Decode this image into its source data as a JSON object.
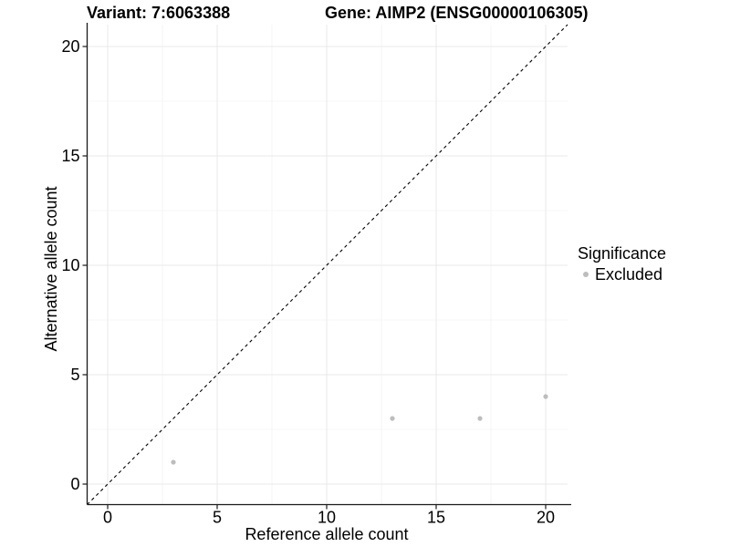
{
  "titles": {
    "variant": "Variant: 7:6063388",
    "gene": "Gene: AIMP2 (ENSG00000106305)"
  },
  "legend": {
    "title": "Significance",
    "items": [
      {
        "label": "Excluded",
        "color": "#bdbdbd"
      }
    ]
  },
  "chart_data": {
    "type": "scatter",
    "title": "Variant: 7:6063388   Gene: AIMP2 (ENSG00000106305)",
    "xlabel": "Reference allele count",
    "ylabel": "Alternative allele count",
    "xlim": [
      -1,
      21
    ],
    "ylim": [
      -1,
      21
    ],
    "x_ticks": [
      0,
      5,
      10,
      15,
      20
    ],
    "y_ticks": [
      0,
      5,
      10,
      15,
      20
    ],
    "minor_gridlines": [
      2.5,
      7.5,
      12.5,
      17.5
    ],
    "grid": true,
    "legend_position": "right",
    "series": [
      {
        "name": "Excluded",
        "color": "#bdbdbd",
        "points": [
          [
            3,
            1
          ],
          [
            13,
            3
          ],
          [
            17,
            3
          ],
          [
            20,
            4
          ]
        ]
      }
    ],
    "reference_line": {
      "type": "identity",
      "slope": 1,
      "intercept": 0,
      "style": "dashed",
      "color": "#000000"
    }
  },
  "colors": {
    "background": "#ffffff",
    "grid_major": "#e9e9e9",
    "grid_minor": "#f4f4f4",
    "axis_line": "#1a1a1a",
    "text": "#000000",
    "point": "#bdbdbd"
  }
}
